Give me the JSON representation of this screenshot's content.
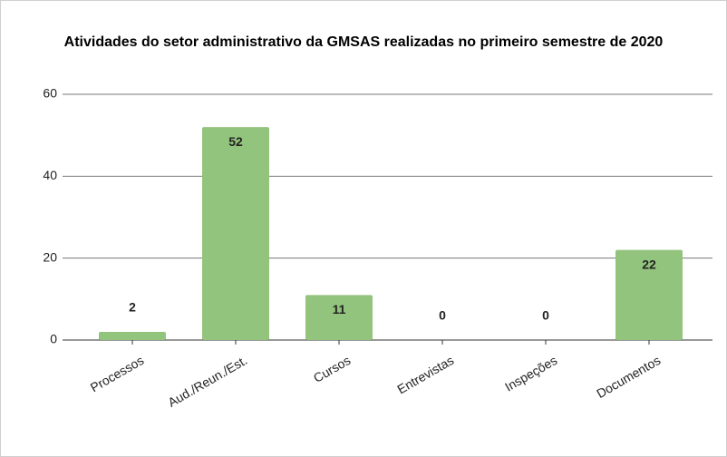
{
  "chart_data": {
    "type": "bar",
    "title": "Atividades do setor administrativo da GMSAS realizadas no primeiro semestre de 2020",
    "categories": [
      "Processos",
      "Aud./Reun./Est.",
      "Cursos",
      "Entrevistas",
      "Inspeções",
      "Documentos"
    ],
    "values": [
      2,
      52,
      11,
      0,
      0,
      22
    ],
    "color": "#93c47d",
    "ylim": [
      0,
      60
    ],
    "yticks": [
      0,
      20,
      40,
      60
    ],
    "grid": true
  }
}
